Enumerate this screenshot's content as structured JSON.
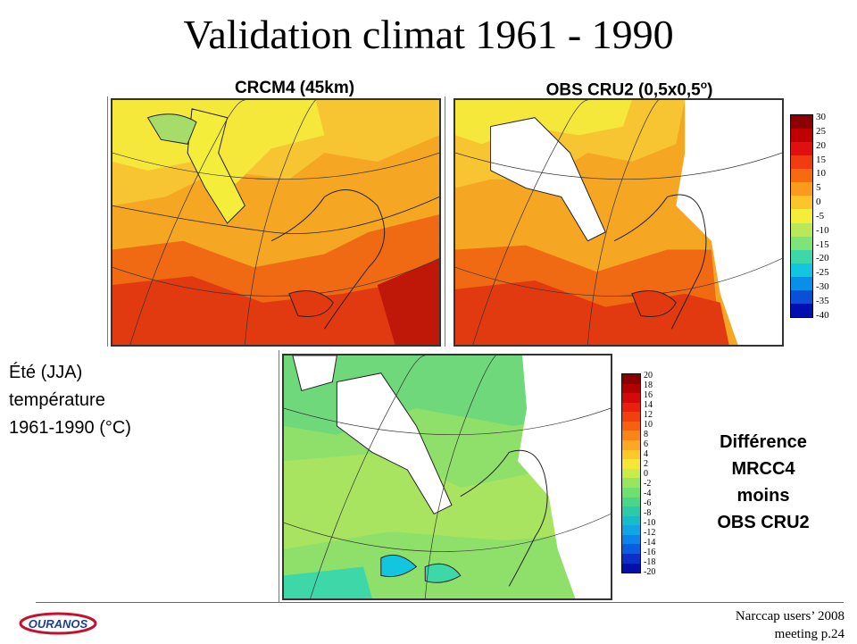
{
  "title": "Validation climat 1961 - 1990",
  "panels": {
    "left_label": "CRCM4 (45km)",
    "right_label_main": "OBS CRU2 (0,5x0,5",
    "right_label_sup": "o",
    "right_label_end": ")"
  },
  "side_label": {
    "line1": "Été (JJA)",
    "line2": "température",
    "line3": "1961-1990 (°C)"
  },
  "diff_label": {
    "line1": "Différence",
    "line2": "MRCC4",
    "line3": "moins",
    "line4": "OBS CRU2"
  },
  "scale_top": {
    "ticks": [
      "30",
      "25",
      "20",
      "15",
      "10",
      "5",
      "0",
      "-5",
      "-10",
      "-15",
      "-20",
      "-25",
      "-30",
      "-35",
      "-40"
    ],
    "colors": [
      "#8b0000",
      "#c00000",
      "#e01010",
      "#f03c10",
      "#f86a10",
      "#fb9b1e",
      "#fcc52a",
      "#f4ee3a",
      "#b9e85a",
      "#7ee37a",
      "#3ed7a8",
      "#12c6e0",
      "#0a8fe8",
      "#0a4fd8",
      "#0010b0"
    ]
  },
  "scale_bottom": {
    "ticks": [
      "20",
      "18",
      "16",
      "14",
      "12",
      "10",
      "8",
      "6",
      "4",
      "2",
      "0",
      "-2",
      "-4",
      "-6",
      "-8",
      "-10",
      "-12",
      "-14",
      "-16",
      "-18",
      "-20"
    ],
    "colors": [
      "#8b0000",
      "#b00000",
      "#d40a0a",
      "#e8200e",
      "#f0400e",
      "#f66010",
      "#fb8418",
      "#fca822",
      "#fcc82a",
      "#f6e636",
      "#c8ec4a",
      "#98e660",
      "#6ee070",
      "#4ad68a",
      "#2ccaa8",
      "#18bcc8",
      "#10a6e4",
      "#0c84ec",
      "#0a5ce0",
      "#0a30c8",
      "#0010a8"
    ]
  },
  "footer": {
    "line1": "Narccap users’ 2008",
    "line2": "meeting  p.24"
  },
  "logo_text": "OURANOS"
}
